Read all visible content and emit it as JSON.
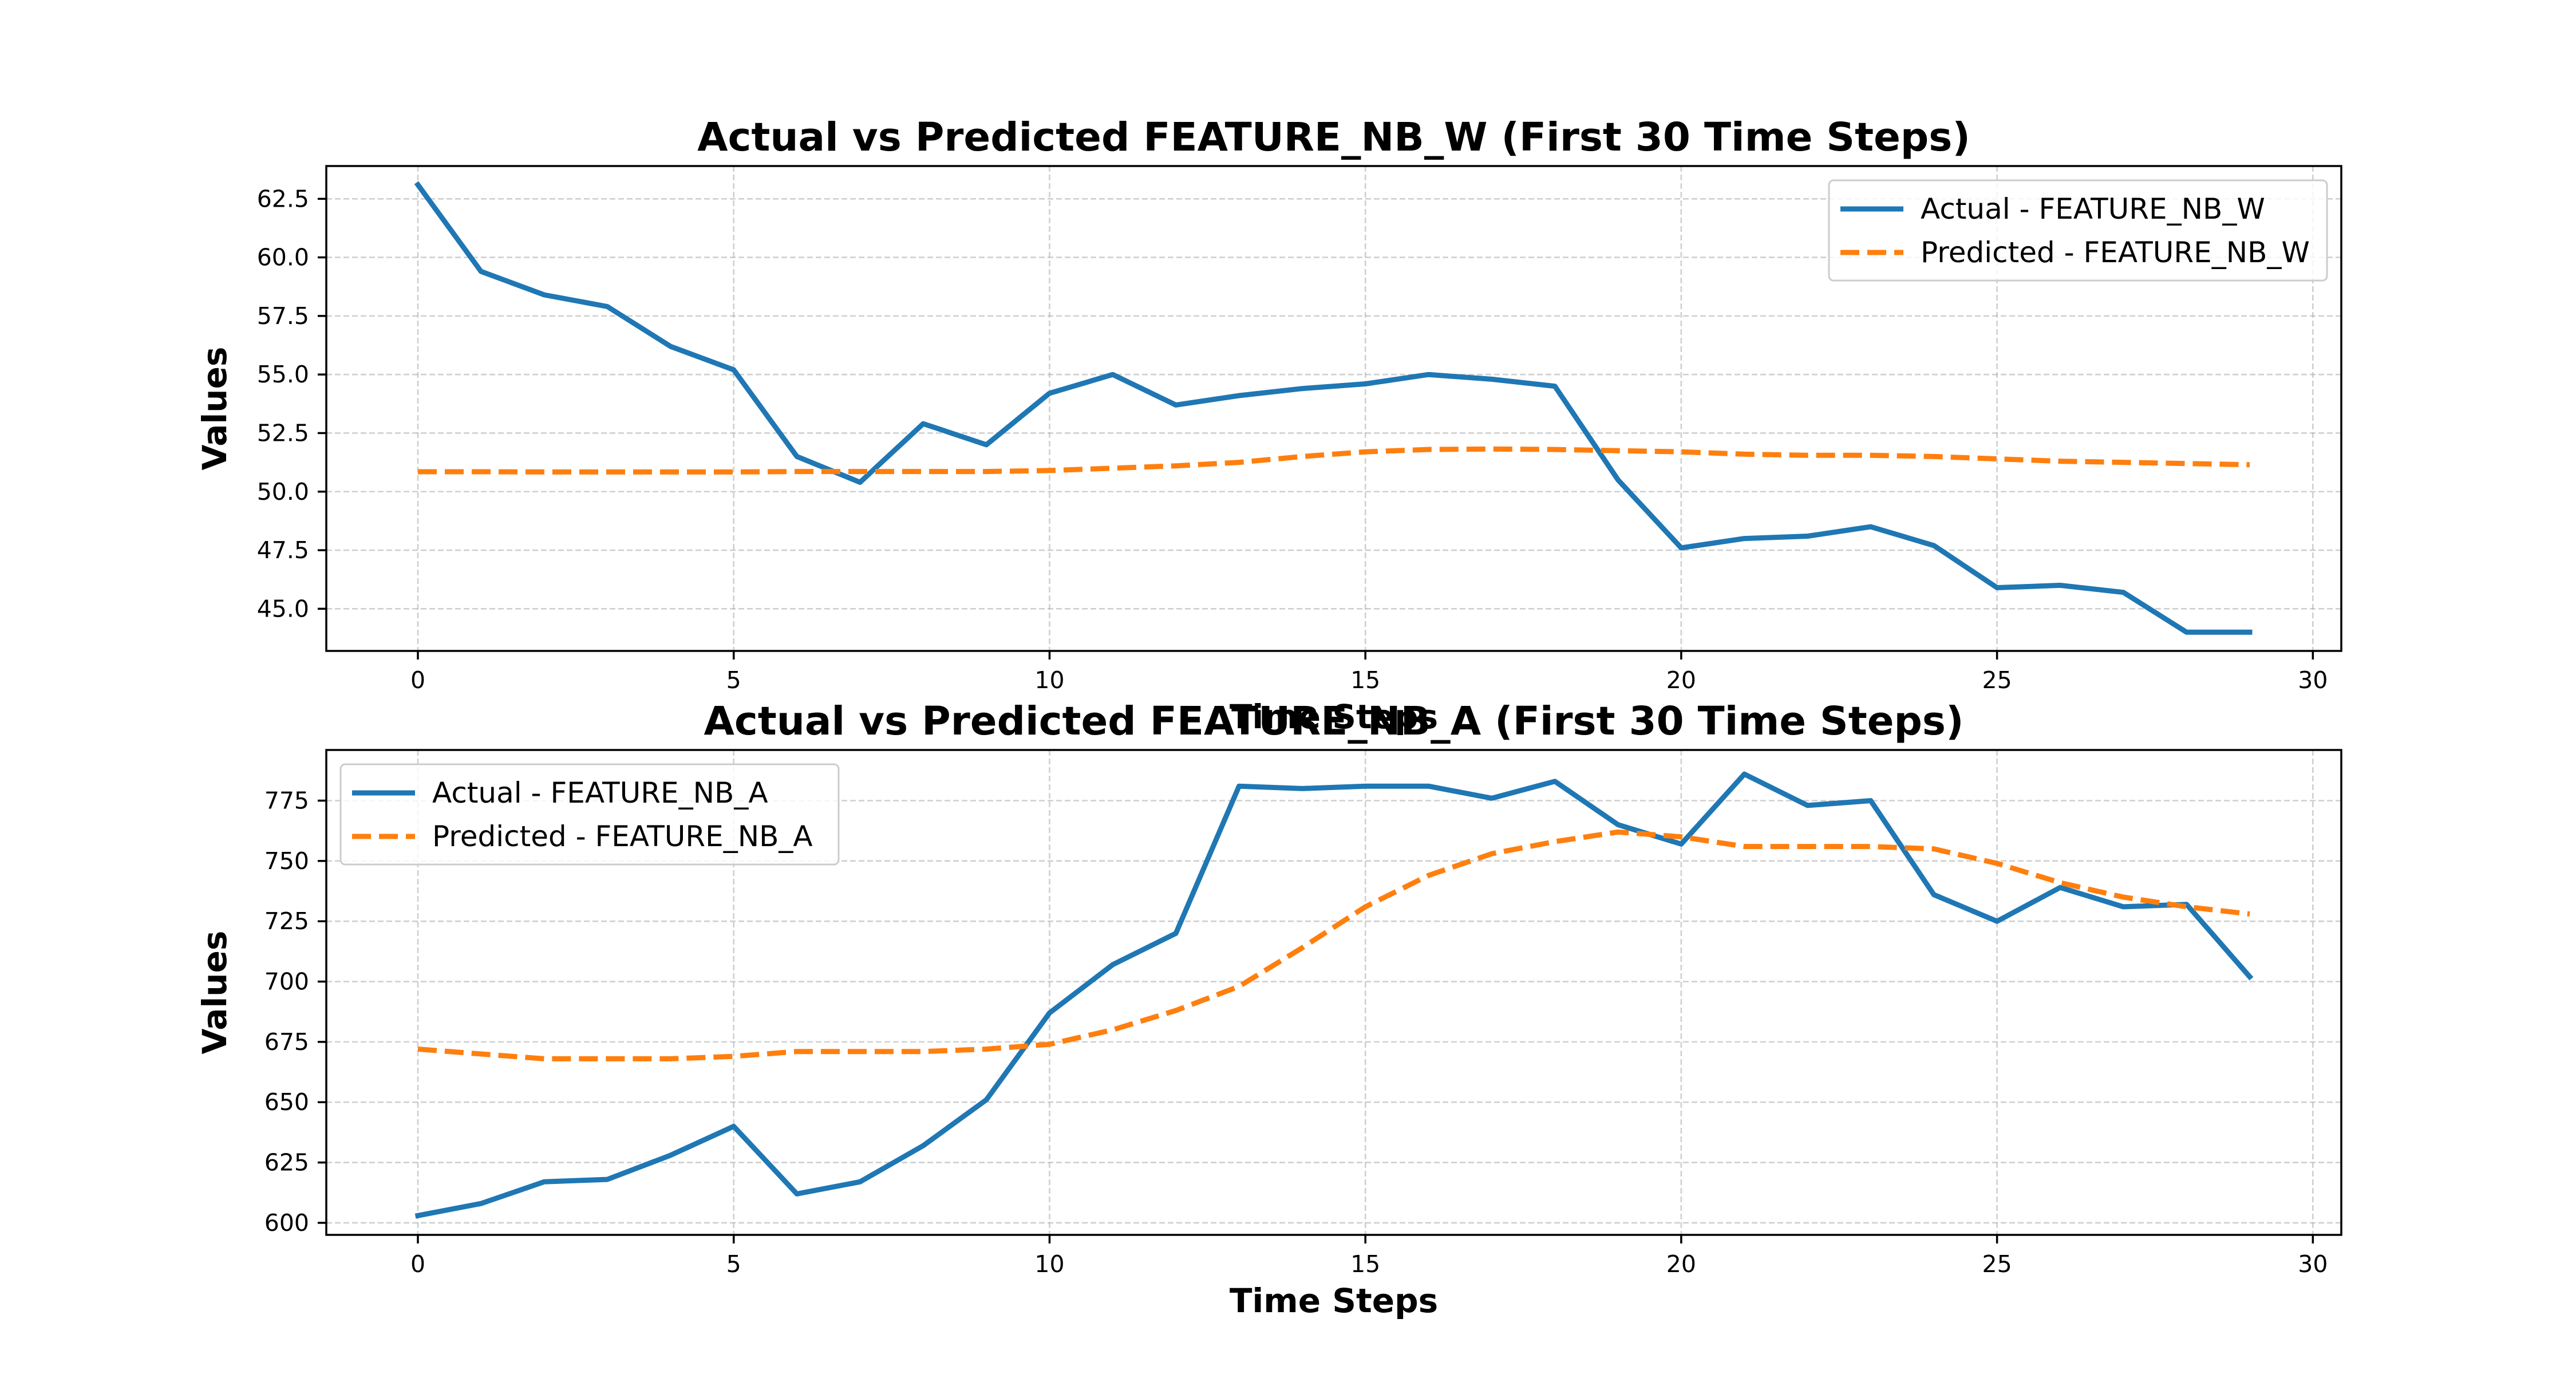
{
  "chart_data": [
    {
      "type": "line",
      "title": "Actual vs Predicted FEATURE_NB_W (First 30 Time Steps)",
      "xlabel": "Time Steps",
      "ylabel": "Values",
      "xlim": [
        -1.45,
        30.45
      ],
      "ylim": [
        43.2,
        63.9
      ],
      "xticks": [
        0,
        5,
        10,
        15,
        20,
        25,
        30
      ],
      "yticks": [
        45.0,
        47.5,
        50.0,
        52.5,
        55.0,
        57.5,
        60.0,
        62.5
      ],
      "ytick_labels": [
        "45.0",
        "47.5",
        "50.0",
        "52.5",
        "55.0",
        "57.5",
        "60.0",
        "62.5"
      ],
      "grid": true,
      "legend_position": "top-right",
      "x": [
        0,
        1,
        2,
        3,
        4,
        5,
        6,
        7,
        8,
        9,
        10,
        11,
        12,
        13,
        14,
        15,
        16,
        17,
        18,
        19,
        20,
        21,
        22,
        23,
        24,
        25,
        26,
        27,
        28,
        29
      ],
      "series": [
        {
          "name": "Actual - FEATURE_NB_W",
          "color": "#1f77b4",
          "style": "solid",
          "values": [
            63.1,
            59.4,
            58.4,
            57.9,
            56.2,
            55.2,
            51.5,
            50.4,
            52.9,
            52.0,
            54.2,
            55.0,
            53.7,
            54.1,
            54.4,
            54.6,
            55.0,
            54.8,
            54.5,
            50.5,
            47.6,
            48.0,
            48.1,
            48.5,
            47.7,
            45.9,
            46.0,
            45.7,
            44.0,
            44.0
          ]
        },
        {
          "name": "Predicted - FEATURE_NB_W",
          "color": "#ff7f0e",
          "style": "dashed",
          "values": [
            50.85,
            50.85,
            50.84,
            50.84,
            50.84,
            50.84,
            50.86,
            50.86,
            50.86,
            50.86,
            50.9,
            51.0,
            51.1,
            51.25,
            51.5,
            51.7,
            51.8,
            51.82,
            51.8,
            51.75,
            51.7,
            51.6,
            51.55,
            51.55,
            51.5,
            51.4,
            51.3,
            51.25,
            51.2,
            51.15
          ]
        }
      ]
    },
    {
      "type": "line",
      "title": "Actual vs Predicted FEATURE_NB_A (First 30 Time Steps)",
      "xlabel": "Time Steps",
      "ylabel": "Values",
      "xlim": [
        -1.45,
        30.45
      ],
      "ylim": [
        595,
        796
      ],
      "xticks": [
        0,
        5,
        10,
        15,
        20,
        25,
        30
      ],
      "yticks": [
        600,
        625,
        650,
        675,
        700,
        725,
        750,
        775
      ],
      "ytick_labels": [
        "600",
        "625",
        "650",
        "675",
        "700",
        "725",
        "750",
        "775"
      ],
      "grid": true,
      "legend_position": "top-left",
      "x": [
        0,
        1,
        2,
        3,
        4,
        5,
        6,
        7,
        8,
        9,
        10,
        11,
        12,
        13,
        14,
        15,
        16,
        17,
        18,
        19,
        20,
        21,
        22,
        23,
        24,
        25,
        26,
        27,
        28,
        29
      ],
      "series": [
        {
          "name": "Actual - FEATURE_NB_A",
          "color": "#1f77b4",
          "style": "solid",
          "values": [
            603,
            608,
            617,
            618,
            628,
            640,
            612,
            617,
            632,
            651,
            687,
            707,
            720,
            781,
            780,
            781,
            781,
            776,
            783,
            765,
            757,
            786,
            773,
            775,
            736,
            725,
            739,
            731,
            732,
            702
          ]
        },
        {
          "name": "Predicted - FEATURE_NB_A",
          "color": "#ff7f0e",
          "style": "dashed",
          "values": [
            672,
            670,
            668,
            668,
            668,
            669,
            671,
            671,
            671,
            672,
            674,
            680,
            688,
            698,
            714,
            731,
            744,
            753,
            758,
            762,
            760,
            756,
            756,
            756,
            755,
            749,
            741,
            735,
            731,
            728
          ]
        }
      ]
    }
  ]
}
